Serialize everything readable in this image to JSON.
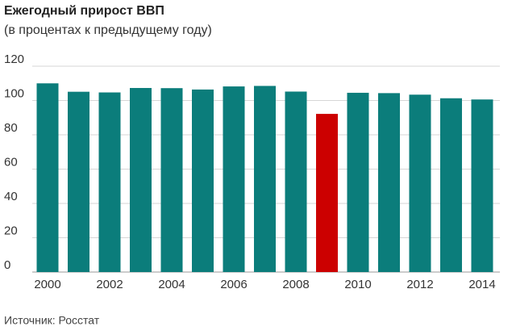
{
  "chart_data": {
    "type": "bar",
    "title": "Ежегодный прирост ВВП",
    "subtitle": "(в процентах к предыдущему году)",
    "source": "Источник: Росстат",
    "categories": [
      "2000",
      null,
      "2002",
      null,
      "2004",
      null,
      "2006",
      null,
      "2008",
      null,
      "2010",
      null,
      "2012",
      null,
      "2014"
    ],
    "values": [
      110.0,
      105.1,
      104.7,
      107.3,
      107.2,
      106.4,
      108.2,
      108.5,
      105.2,
      92.2,
      104.5,
      104.3,
      103.4,
      101.3,
      100.6
    ],
    "colors": [
      "#0b7d7b",
      "#0b7d7b",
      "#0b7d7b",
      "#0b7d7b",
      "#0b7d7b",
      "#0b7d7b",
      "#0b7d7b",
      "#0b7d7b",
      "#0b7d7b",
      "#cc0000",
      "#0b7d7b",
      "#0b7d7b",
      "#0b7d7b",
      "#0b7d7b",
      "#0b7d7b"
    ],
    "ylim": [
      0,
      120
    ],
    "yticks": [
      0,
      20,
      40,
      60,
      80,
      100,
      120
    ],
    "grid": true
  }
}
